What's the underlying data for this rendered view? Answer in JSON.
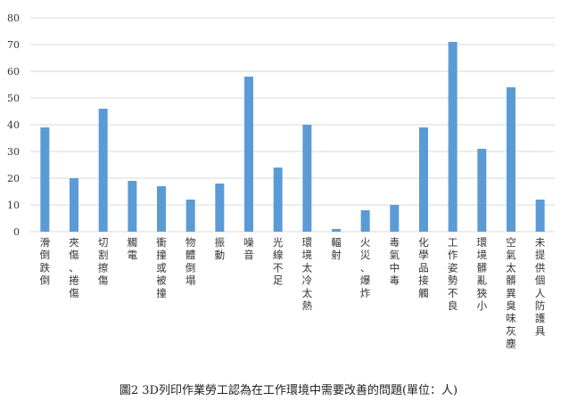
{
  "chart_data": {
    "type": "bar",
    "categories": [
      "滑倒跌倒",
      "夾傷、捲傷",
      "切割擦傷",
      "觸電",
      "衝撞或被撞",
      "物體倒塌",
      "振動",
      "噪音",
      "光線不足",
      "環境太冷太熱",
      "輻射",
      "火災、爆炸",
      "毒氣中毒",
      "化學品接觸",
      "工作姿勢不良",
      "環境髒亂狹小",
      "空氣太髒異臭味灰塵",
      "未提供個人防護具"
    ],
    "values": [
      39,
      20,
      46,
      19,
      17,
      12,
      18,
      58,
      24,
      40,
      1,
      8,
      10,
      39,
      71,
      31,
      54,
      12
    ],
    "ylim": [
      0,
      80
    ],
    "yticks": [
      0,
      10,
      20,
      30,
      40,
      50,
      60,
      70,
      80
    ],
    "grid": true,
    "legend": "none",
    "bar_color": "#5b9bd5",
    "grid_color": "#d9d9d9"
  },
  "caption": "圖2 3D列印作業勞工認為在工作環境中需要改善的問題(單位：人)"
}
